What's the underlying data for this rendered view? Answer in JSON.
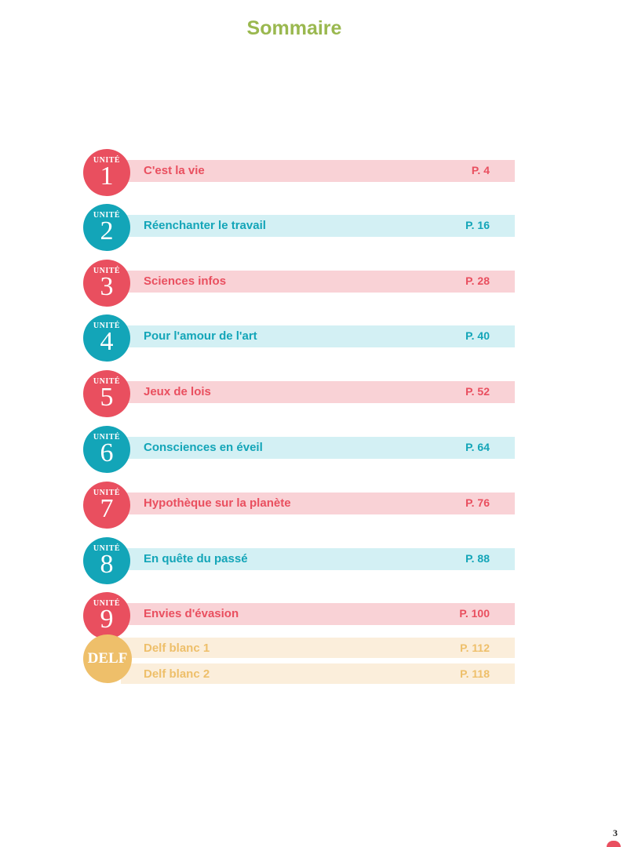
{
  "title": "Sommaire",
  "colors": {
    "title": "#9ab84f",
    "pink": "#e94f5f",
    "pink_bar": "#f9d2d6",
    "teal": "#13a5b8",
    "teal_bar": "#d3f0f4",
    "delf": "#eebf6a",
    "delf_bar": "#fbeedb"
  },
  "units": [
    {
      "label": "UNITÉ",
      "number": "1",
      "title": "C'est la vie",
      "page": "P. 4",
      "theme": "pink"
    },
    {
      "label": "UNITÉ",
      "number": "2",
      "title": "Réenchanter le travail",
      "page": "P. 16",
      "theme": "teal"
    },
    {
      "label": "UNITÉ",
      "number": "3",
      "title": "Sciences infos",
      "page": "P. 28",
      "theme": "pink"
    },
    {
      "label": "UNITÉ",
      "number": "4",
      "title": "Pour l'amour de l'art",
      "page": "P. 40",
      "theme": "teal"
    },
    {
      "label": "UNITÉ",
      "number": "5",
      "title": "Jeux de lois",
      "page": "P. 52",
      "theme": "pink"
    },
    {
      "label": "UNITÉ",
      "number": "6",
      "title": "Consciences en éveil",
      "page": "P. 64",
      "theme": "teal"
    },
    {
      "label": "UNITÉ",
      "number": "7",
      "title": "Hypothèque sur la planète",
      "page": "P. 76",
      "theme": "pink"
    },
    {
      "label": "UNITÉ",
      "number": "8",
      "title": "En quête du passé",
      "page": "P. 88",
      "theme": "teal"
    },
    {
      "label": "UNITÉ",
      "number": "9",
      "title": "Envies d'évasion",
      "page": "P. 100",
      "theme": "pink"
    }
  ],
  "delf": {
    "tag": "DELF",
    "items": [
      {
        "title": "Delf blanc 1",
        "page": "P. 112"
      },
      {
        "title": "Delf blanc 2",
        "page": "P. 118"
      }
    ]
  },
  "page_number": "3"
}
